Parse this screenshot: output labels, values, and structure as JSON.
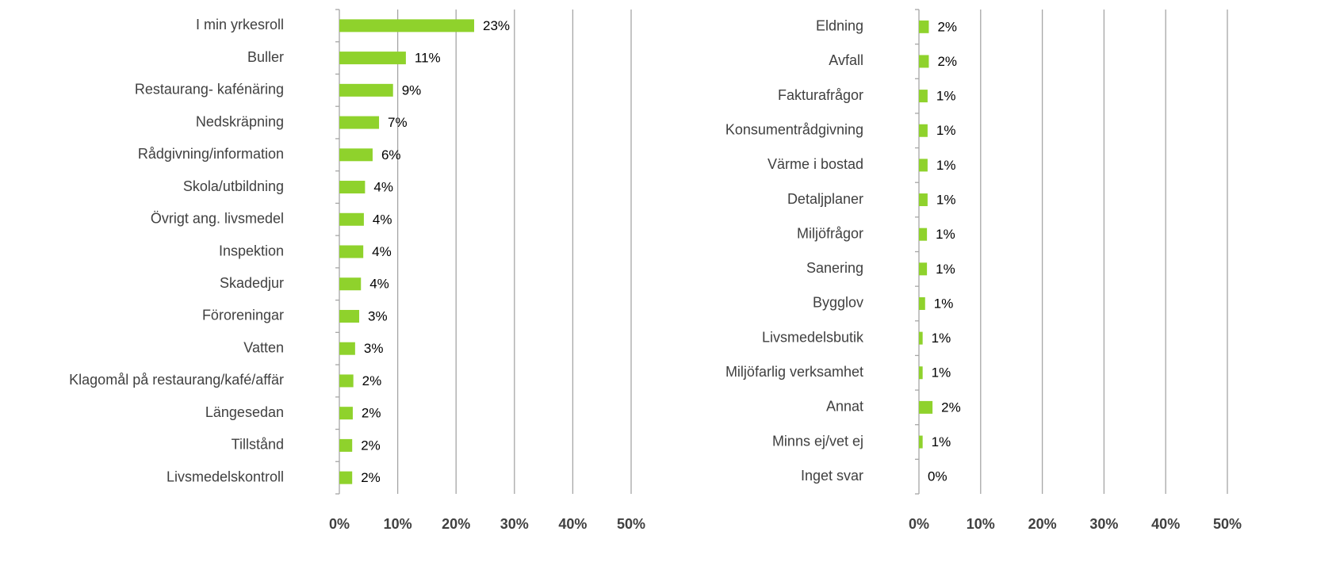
{
  "chart_data": [
    {
      "type": "bar",
      "orientation": "horizontal",
      "color": "#8fd22c",
      "grid": true,
      "categories": [
        "I min yrkesroll",
        "Buller",
        "Restaurang- kafénäring",
        "Nedskräpning",
        "Rådgivning/information",
        "Skola/utbildning",
        "Övrigt ang. livsmedel",
        "Inspektion",
        "Skadedjur",
        "Föroreningar",
        "Vatten",
        "Klagomål på restaurang/kafé/affär",
        "Längesedan",
        "Tillstånd",
        "Livsmedelskontroll"
      ],
      "values": [
        23.1,
        11.4,
        9.2,
        6.8,
        5.7,
        4.4,
        4.2,
        4.1,
        3.7,
        3.4,
        2.7,
        2.4,
        2.3,
        2.2,
        2.2
      ],
      "value_labels": [
        "23%",
        "11%",
        "9%",
        "7%",
        "6%",
        "4%",
        "4%",
        "4%",
        "4%",
        "3%",
        "3%",
        "2%",
        "2%",
        "2%",
        "2%"
      ],
      "xlim": [
        0,
        50
      ],
      "xticks": [
        {
          "value": 0,
          "label": "0%"
        },
        {
          "value": 10,
          "label": "10%"
        },
        {
          "value": 20,
          "label": "20%"
        },
        {
          "value": 30,
          "label": "30%"
        },
        {
          "value": 40,
          "label": "40%"
        },
        {
          "value": 50,
          "label": "50%"
        }
      ]
    },
    {
      "type": "bar",
      "orientation": "horizontal",
      "color": "#8fd22c",
      "grid": true,
      "categories": [
        "Eldning",
        "Avfall",
        "Fakturafrågor",
        "Konsumentrådgivning",
        "Värme i bostad",
        "Detaljplaner",
        "Miljöfrågor",
        "Sanering",
        "Bygglov",
        "Livsmedelsbutik",
        "Miljöfarlig verksamhet",
        "Annat",
        "Minns ej/vet ej",
        "Inget svar"
      ],
      "values": [
        1.6,
        1.6,
        1.4,
        1.4,
        1.4,
        1.4,
        1.3,
        1.3,
        1.0,
        0.6,
        0.6,
        2.2,
        0.6,
        0
      ],
      "value_labels": [
        "2%",
        "2%",
        "1%",
        "1%",
        "1%",
        "1%",
        "1%",
        "1%",
        "1%",
        "1%",
        "1%",
        "2%",
        "1%",
        "0%"
      ],
      "xlim": [
        0,
        50
      ],
      "xticks": [
        {
          "value": 0,
          "label": "0%"
        },
        {
          "value": 10,
          "label": "10%"
        },
        {
          "value": 20,
          "label": "20%"
        },
        {
          "value": 30,
          "label": "30%"
        },
        {
          "value": 40,
          "label": "40%"
        },
        {
          "value": 50,
          "label": "50%"
        }
      ]
    }
  ]
}
